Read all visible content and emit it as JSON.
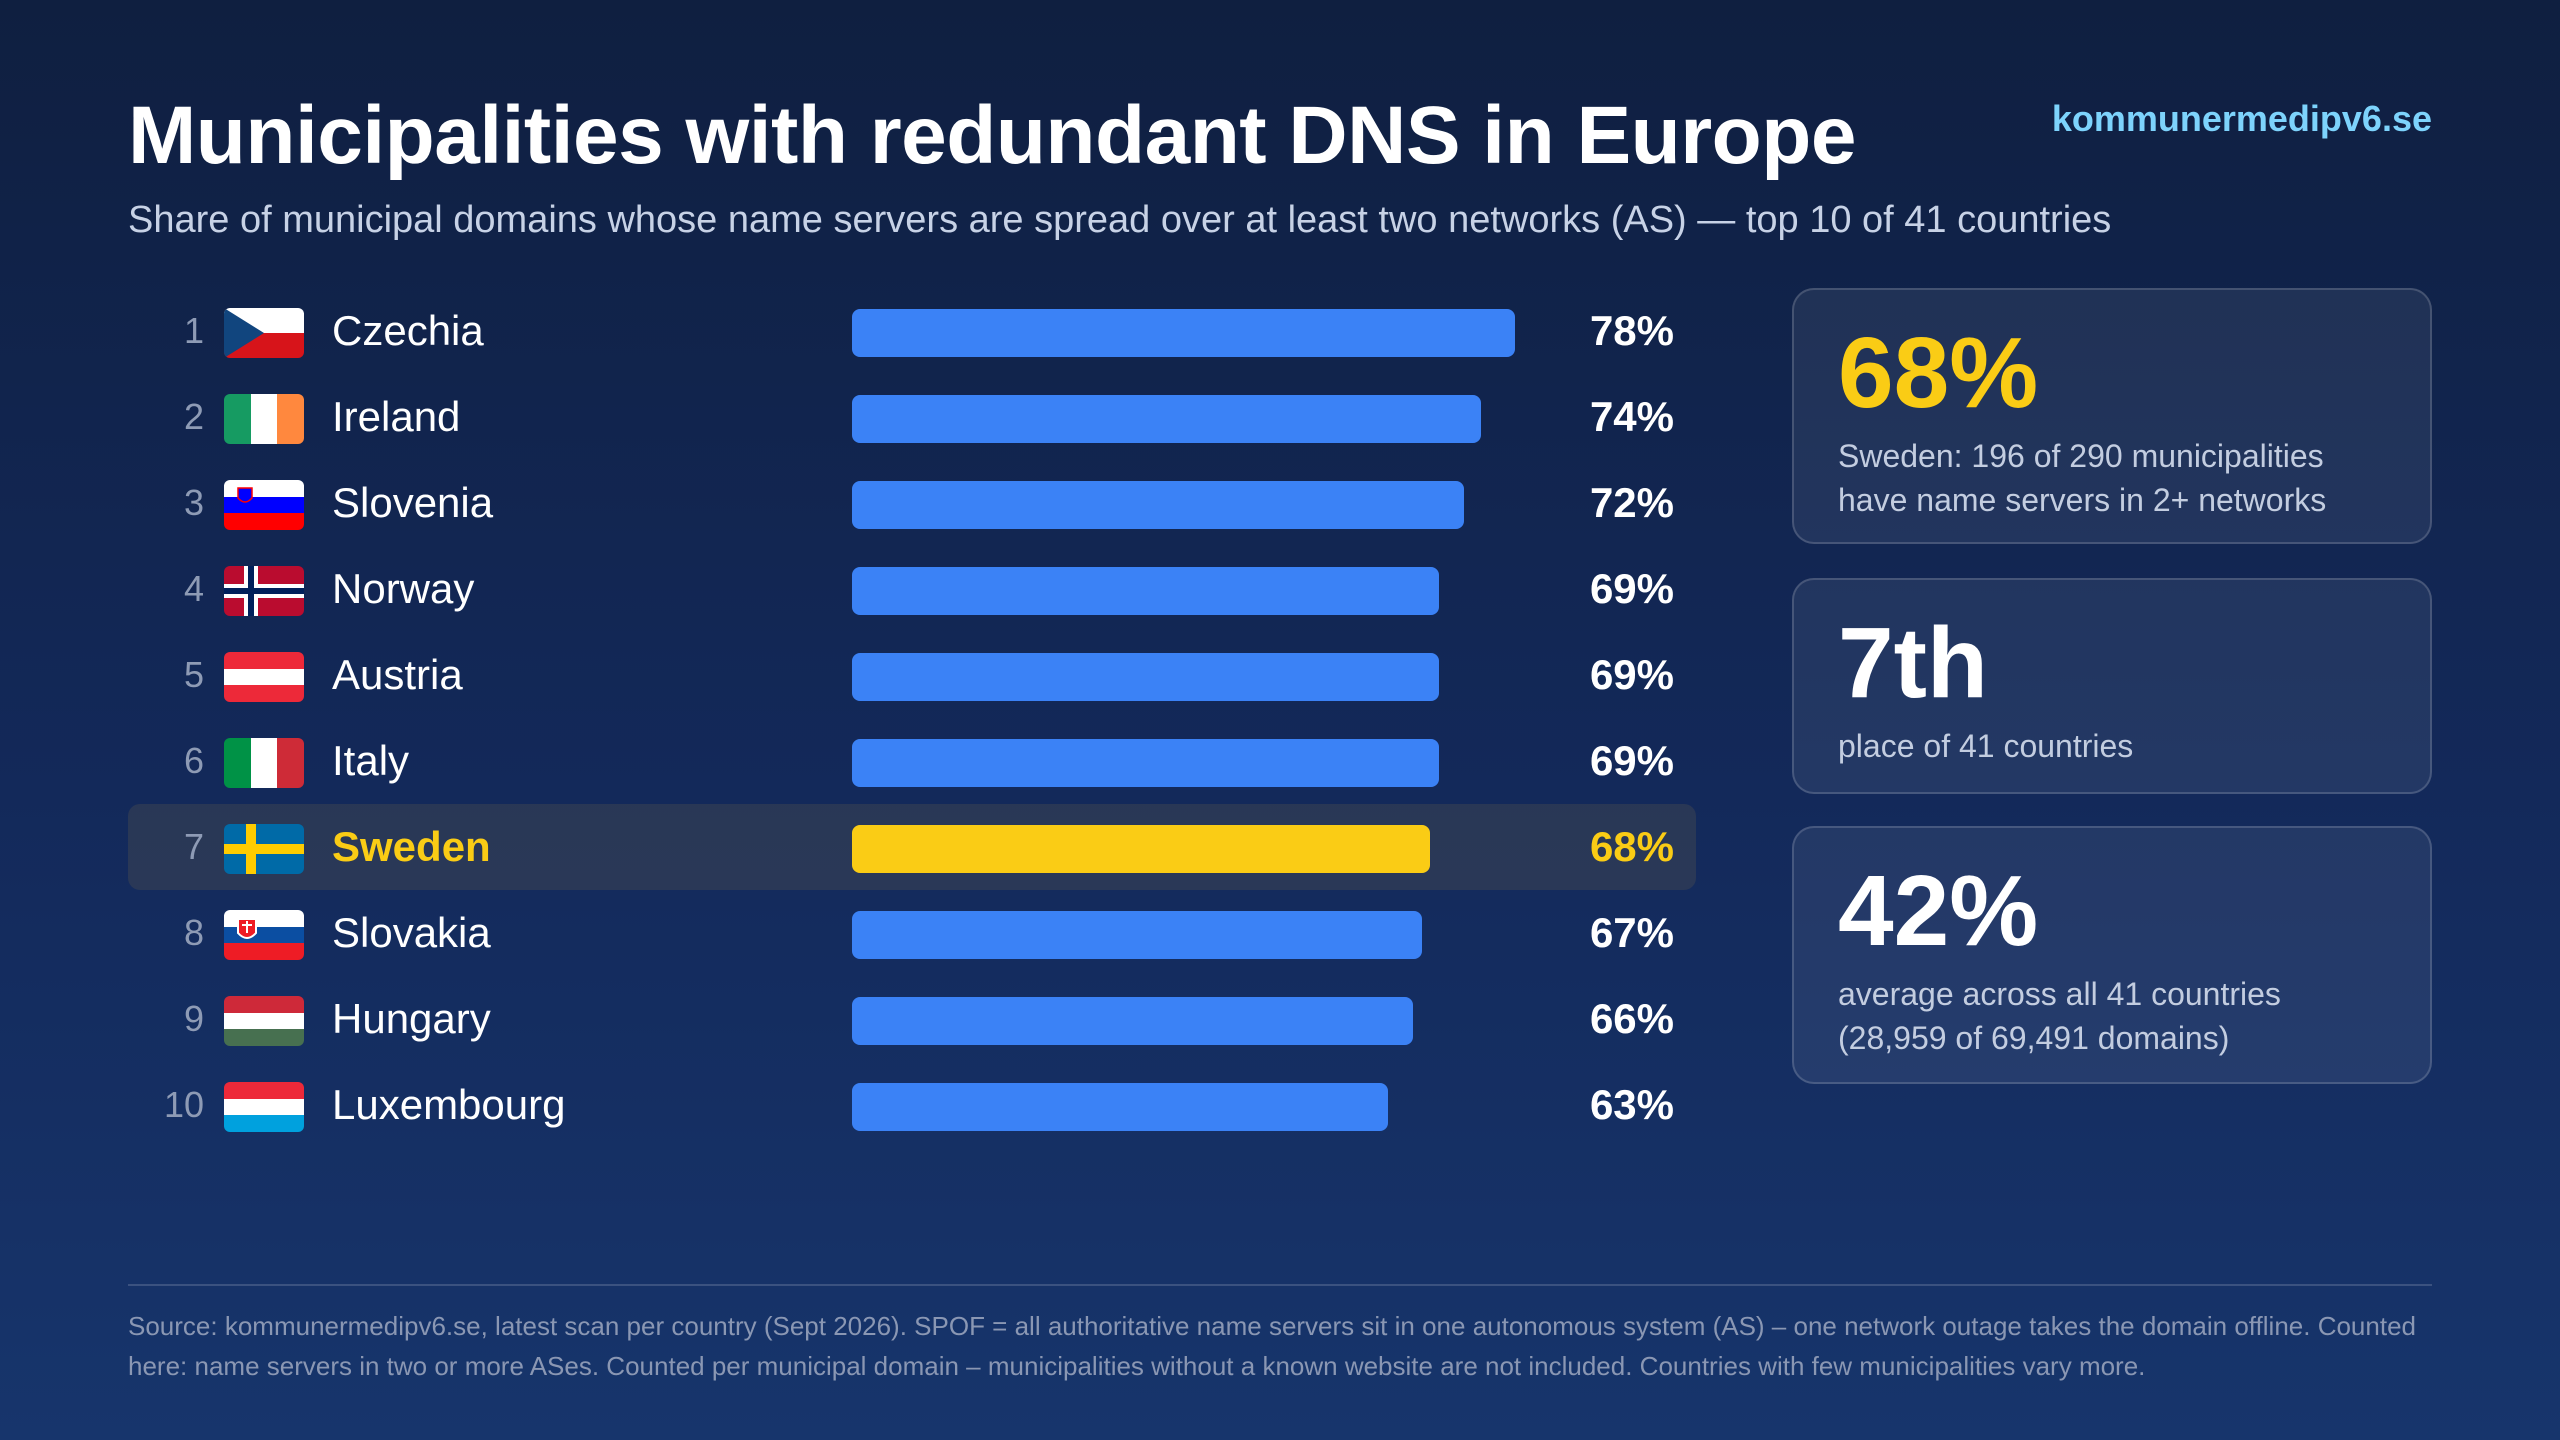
{
  "header": {
    "title": "Municipalities with redundant DNS in Europe",
    "site": "kommunermedipv6.se",
    "subtitle": "Share of municipal domains whose name servers are spread over at least two networks (AS) — top 10 of 41 countries"
  },
  "colors": {
    "bar": "#3b82f6",
    "highlight": "#facc15",
    "site_link": "#7dd3fc"
  },
  "chart_data": {
    "type": "bar",
    "orientation": "horizontal",
    "title": "Municipalities with redundant DNS in Europe",
    "unit": "%",
    "highlight": "Sweden",
    "xlim": [
      0,
      100
    ],
    "rows": [
      {
        "rank": "1",
        "country": "Czechia",
        "value": 78,
        "label": "78%",
        "flag": "cz"
      },
      {
        "rank": "2",
        "country": "Ireland",
        "value": 74,
        "label": "74%",
        "flag": "ie"
      },
      {
        "rank": "3",
        "country": "Slovenia",
        "value": 72,
        "label": "72%",
        "flag": "si"
      },
      {
        "rank": "4",
        "country": "Norway",
        "value": 69,
        "label": "69%",
        "flag": "no"
      },
      {
        "rank": "5",
        "country": "Austria",
        "value": 69,
        "label": "69%",
        "flag": "at"
      },
      {
        "rank": "6",
        "country": "Italy",
        "value": 69,
        "label": "69%",
        "flag": "it"
      },
      {
        "rank": "7",
        "country": "Sweden",
        "value": 68,
        "label": "68%",
        "flag": "se"
      },
      {
        "rank": "8",
        "country": "Slovakia",
        "value": 67,
        "label": "67%",
        "flag": "sk"
      },
      {
        "rank": "9",
        "country": "Hungary",
        "value": 66,
        "label": "66%",
        "flag": "hu"
      },
      {
        "rank": "10",
        "country": "Luxembourg",
        "value": 63,
        "label": "63%",
        "flag": "lu"
      }
    ]
  },
  "cards": [
    {
      "big": "68%",
      "desc": [
        "Sweden: 196 of 290 municipalities",
        "have name servers in 2+ networks"
      ],
      "accent": "#facc15"
    },
    {
      "big": "7th",
      "desc": [
        "place of 41 countries"
      ],
      "accent": "#ffffff"
    },
    {
      "big": "42%",
      "desc": [
        "average across all 41 countries",
        "(28,959 of 69,491 domains)"
      ],
      "accent": "#ffffff"
    }
  ],
  "footer": {
    "source_line1": "Source: kommunermedipv6.se, latest scan per country (Sept 2026). SPOF = all authoritative name servers sit in one autonomous system (AS) – one network outage takes the domain offline. Counted",
    "source_line2": "here: name servers in two or more ASes. Counted per municipal domain – municipalities without a known website are not included. Countries with few municipalities vary more."
  }
}
